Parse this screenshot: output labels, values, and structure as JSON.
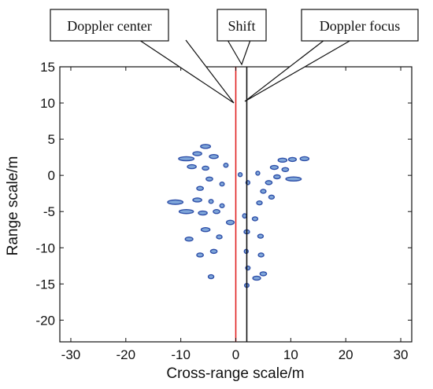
{
  "chart_data": {
    "type": "scatter",
    "title": "",
    "xlabel": "Cross-range scale/m",
    "ylabel": "Range scale/m",
    "xlim": [
      -32,
      32
    ],
    "ylim": [
      -23,
      15
    ],
    "xticks": [
      -30,
      -20,
      -10,
      0,
      10,
      20,
      30
    ],
    "yticks": [
      15,
      10,
      5,
      0,
      -5,
      -10,
      -15,
      -20
    ],
    "grid": false,
    "colors": {
      "scatterer_fill": "#7fa6d9",
      "scatterer_edge": "#2e4fa8",
      "doppler_center_line": "#e02020",
      "doppler_focus_line": "#111111"
    },
    "vertical_lines": [
      {
        "name": "Doppler center",
        "x": 0,
        "color": "#e02020"
      },
      {
        "name": "Doppler focus",
        "x": 2,
        "color": "#111111"
      }
    ],
    "annotations": [
      {
        "text": "Doppler center",
        "target_x": 0
      },
      {
        "text": "Shift",
        "target_x": 1
      },
      {
        "text": "Doppler focus",
        "target_x": 2
      }
    ],
    "scatterers": [
      {
        "x": -9.0,
        "y": 2.3,
        "w": 2.8,
        "h": 0.55
      },
      {
        "x": -7.0,
        "y": 3.0,
        "w": 1.6,
        "h": 0.5
      },
      {
        "x": -5.5,
        "y": 4.0,
        "w": 1.8,
        "h": 0.45
      },
      {
        "x": -4.0,
        "y": 2.6,
        "w": 1.6,
        "h": 0.5
      },
      {
        "x": -8.0,
        "y": 1.2,
        "w": 1.6,
        "h": 0.5
      },
      {
        "x": -5.5,
        "y": 1.0,
        "w": 1.2,
        "h": 0.5
      },
      {
        "x": -1.8,
        "y": 1.4,
        "w": 0.8,
        "h": 0.55
      },
      {
        "x": -4.8,
        "y": -0.5,
        "w": 1.2,
        "h": 0.5
      },
      {
        "x": -2.5,
        "y": -1.2,
        "w": 0.8,
        "h": 0.5
      },
      {
        "x": -6.5,
        "y": -1.8,
        "w": 1.2,
        "h": 0.5
      },
      {
        "x": -11.0,
        "y": -3.7,
        "w": 2.8,
        "h": 0.6
      },
      {
        "x": -7.0,
        "y": -3.4,
        "w": 1.6,
        "h": 0.5
      },
      {
        "x": -4.5,
        "y": -3.6,
        "w": 0.8,
        "h": 0.5
      },
      {
        "x": -2.5,
        "y": -4.2,
        "w": 0.8,
        "h": 0.5
      },
      {
        "x": -9.0,
        "y": -5.0,
        "w": 2.6,
        "h": 0.55
      },
      {
        "x": -6.0,
        "y": -5.2,
        "w": 1.6,
        "h": 0.5
      },
      {
        "x": -3.5,
        "y": -5.0,
        "w": 1.2,
        "h": 0.5
      },
      {
        "x": -1.0,
        "y": -6.5,
        "w": 1.4,
        "h": 0.6
      },
      {
        "x": -8.5,
        "y": -8.8,
        "w": 1.4,
        "h": 0.5
      },
      {
        "x": -5.5,
        "y": -7.5,
        "w": 1.6,
        "h": 0.5
      },
      {
        "x": -3.0,
        "y": -8.5,
        "w": 1.0,
        "h": 0.5
      },
      {
        "x": -6.5,
        "y": -11.0,
        "w": 1.2,
        "h": 0.5
      },
      {
        "x": -4.0,
        "y": -10.5,
        "w": 1.2,
        "h": 0.5
      },
      {
        "x": -4.5,
        "y": -14.0,
        "w": 1.0,
        "h": 0.5
      },
      {
        "x": 0.8,
        "y": 0.1,
        "w": 0.7,
        "h": 0.5
      },
      {
        "x": 2.2,
        "y": -1.0,
        "w": 0.5,
        "h": 0.4
      },
      {
        "x": 1.6,
        "y": -5.6,
        "w": 0.6,
        "h": 0.6
      },
      {
        "x": 2.0,
        "y": -7.8,
        "w": 1.0,
        "h": 0.5
      },
      {
        "x": 1.9,
        "y": -10.5,
        "w": 0.4,
        "h": 0.4
      },
      {
        "x": 2.2,
        "y": -12.8,
        "w": 0.8,
        "h": 0.5
      },
      {
        "x": 2.0,
        "y": -15.2,
        "w": 0.8,
        "h": 0.5
      },
      {
        "x": 4.0,
        "y": 0.3,
        "w": 0.6,
        "h": 0.5
      },
      {
        "x": 5.0,
        "y": -2.2,
        "w": 1.0,
        "h": 0.5
      },
      {
        "x": 4.3,
        "y": -3.8,
        "w": 1.0,
        "h": 0.5
      },
      {
        "x": 3.5,
        "y": -6.0,
        "w": 1.0,
        "h": 0.5
      },
      {
        "x": 4.5,
        "y": -8.4,
        "w": 1.0,
        "h": 0.5
      },
      {
        "x": 4.6,
        "y": -11.0,
        "w": 1.0,
        "h": 0.5
      },
      {
        "x": 3.8,
        "y": -14.2,
        "w": 1.4,
        "h": 0.5
      },
      {
        "x": 5.0,
        "y": -13.6,
        "w": 1.2,
        "h": 0.5
      },
      {
        "x": 6.0,
        "y": -1.0,
        "w": 1.2,
        "h": 0.5
      },
      {
        "x": 6.5,
        "y": -3.0,
        "w": 1.0,
        "h": 0.5
      },
      {
        "x": 7.0,
        "y": 1.1,
        "w": 1.4,
        "h": 0.5
      },
      {
        "x": 8.5,
        "y": 2.1,
        "w": 1.6,
        "h": 0.5
      },
      {
        "x": 10.3,
        "y": 2.2,
        "w": 1.4,
        "h": 0.5
      },
      {
        "x": 12.5,
        "y": 2.3,
        "w": 1.6,
        "h": 0.5
      },
      {
        "x": 10.5,
        "y": -0.5,
        "w": 2.8,
        "h": 0.55
      },
      {
        "x": 7.5,
        "y": -0.2,
        "w": 1.2,
        "h": 0.5
      },
      {
        "x": 9.0,
        "y": 0.8,
        "w": 1.2,
        "h": 0.5
      }
    ]
  }
}
